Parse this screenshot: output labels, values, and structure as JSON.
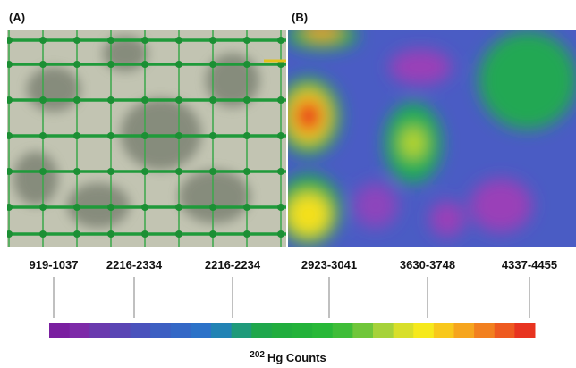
{
  "panels": [
    {
      "label": "(A)"
    },
    {
      "label": "(B)"
    }
  ],
  "ranges": [
    "919-1037",
    "2216-2334",
    "2216-2234",
    "2923-3041",
    "3630-3748",
    "4337-4455"
  ],
  "colorbar": {
    "title_superscript": "202",
    "title": "Hg Counts"
  }
}
